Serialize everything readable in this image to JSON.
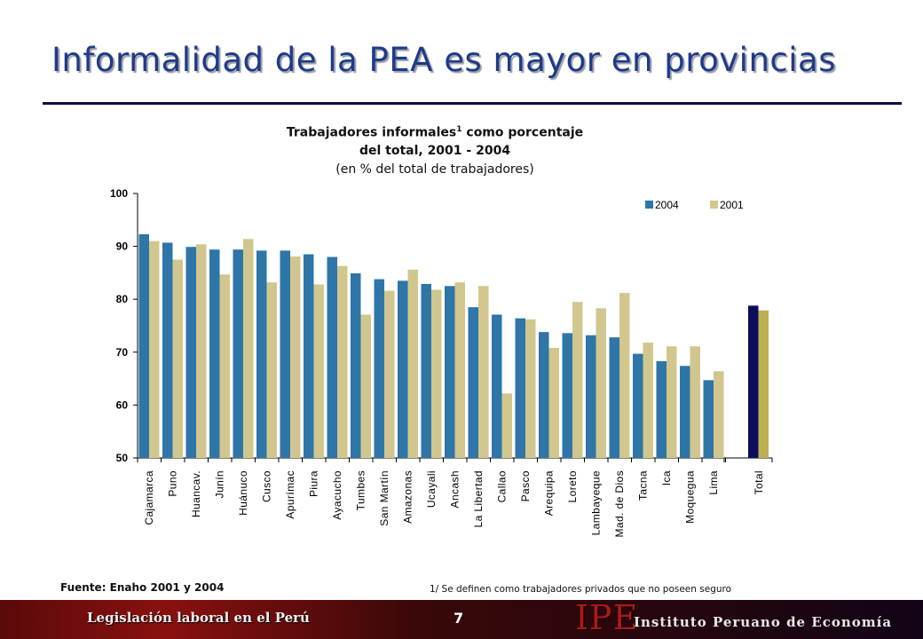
{
  "slide": {
    "title": "Informalidad de la PEA es mayor en provincias",
    "page_number": "7",
    "footer_left": "Legislación laboral en el Perú",
    "logo": "IPE",
    "institute": "Instituto Peruano de Economía",
    "source": "Fuente: Enaho 2001 y 2004",
    "footnote": "1/ Se definen como trabajadores privados que no poseen seguro"
  },
  "chart_data": {
    "type": "bar",
    "title_line1": "Trabajadores informales",
    "title_sup": "1",
    "title_line1_end": " como porcentaje",
    "title_line2": "del total, 2001 - 2004",
    "subtitle": "(en % del total de trabajadores)",
    "ylim": [
      50,
      100
    ],
    "yticks": [
      50,
      60,
      70,
      80,
      90,
      100
    ],
    "legend_position": "top-right",
    "categories": [
      "Cajamarca",
      "Puno",
      "Huancav.",
      "Junín",
      "Huánuco",
      "Cusco",
      "Apurímac",
      "Piura",
      "Ayacucho",
      "Tumbes",
      "San Martín",
      "Amazonas",
      "Ucayali",
      "Ancash",
      "La Libertad",
      "Callao",
      "Pasco",
      "Arequipa",
      "Loreto",
      "Lambayeque",
      "Mad. de Dios",
      "Tacna",
      "Ica",
      "Moquegua",
      "Lima",
      "Total"
    ],
    "series": [
      {
        "name": "2004",
        "color": "#2e75a8",
        "total_color": "#0d0d5e",
        "values": [
          92.3,
          90.7,
          89.9,
          89.4,
          89.4,
          89.2,
          89.2,
          88.5,
          88.0,
          84.9,
          83.8,
          83.5,
          82.9,
          82.5,
          78.5,
          77.1,
          76.4,
          73.8,
          73.6,
          73.2,
          72.8,
          69.7,
          68.3,
          67.4,
          64.7,
          78.8
        ]
      },
      {
        "name": "2001",
        "color": "#d1c78e",
        "total_color": "#bdb050",
        "values": [
          91.0,
          87.5,
          90.4,
          84.7,
          91.4,
          83.2,
          88.1,
          82.8,
          86.3,
          77.1,
          81.6,
          85.6,
          81.8,
          83.2,
          82.5,
          62.2,
          76.2,
          70.8,
          79.5,
          78.3,
          81.2,
          71.8,
          71.1,
          71.1,
          66.4,
          77.9
        ]
      }
    ]
  }
}
